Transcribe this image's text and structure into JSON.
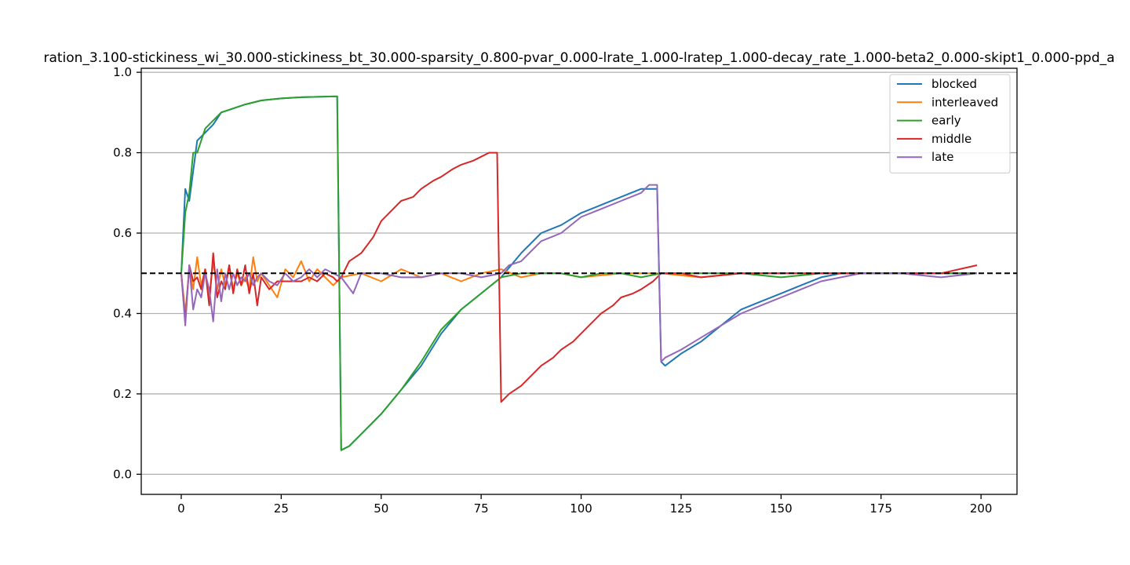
{
  "chart_data": {
    "type": "line",
    "title": "ration_3.100-stickiness_wi_30.000-stickiness_bt_30.000-sparsity_0.800-pvar_0.000-lrate_1.000-lratep_1.000-decay_rate_1.000-beta2_0.000-skipt1_0.000-ppd_a",
    "xlabel": "",
    "ylabel": "",
    "xlim": [
      -10,
      209
    ],
    "ylim": [
      -0.05,
      1.01
    ],
    "xticks": [
      "0",
      "25",
      "50",
      "75",
      "100",
      "125",
      "150",
      "175",
      "200"
    ],
    "yticks": [
      "0.0",
      "0.2",
      "0.4",
      "0.6",
      "0.8",
      "1.0"
    ],
    "ygrid": true,
    "legend_position": "top-right",
    "reference_line": {
      "y": 0.5,
      "style": "dashed",
      "color": "#000000"
    },
    "series": [
      {
        "name": "blocked",
        "color": "#1f77b4",
        "x": [
          0,
          1,
          2,
          4,
          6,
          8,
          10,
          13,
          16,
          20,
          25,
          30,
          38,
          39,
          40,
          42,
          45,
          50,
          55,
          60,
          65,
          70,
          75,
          80,
          85,
          90,
          95,
          100,
          105,
          110,
          115,
          119,
          120,
          121,
          125,
          130,
          135,
          140,
          145,
          150,
          155,
          160,
          165,
          170,
          180,
          190,
          199
        ],
        "y": [
          0.5,
          0.71,
          0.68,
          0.83,
          0.85,
          0.87,
          0.9,
          0.91,
          0.92,
          0.93,
          0.935,
          0.938,
          0.94,
          0.94,
          0.06,
          0.07,
          0.1,
          0.15,
          0.21,
          0.27,
          0.35,
          0.41,
          0.45,
          0.49,
          0.55,
          0.6,
          0.62,
          0.65,
          0.67,
          0.69,
          0.71,
          0.71,
          0.28,
          0.27,
          0.3,
          0.33,
          0.37,
          0.41,
          0.43,
          0.45,
          0.47,
          0.49,
          0.5,
          0.5,
          0.5,
          0.5,
          0.5
        ]
      },
      {
        "name": "interleaved",
        "color": "#ff7f0e",
        "x": [
          0,
          1,
          2,
          3,
          4,
          5,
          6,
          7,
          8,
          9,
          10,
          11,
          12,
          13,
          14,
          15,
          16,
          17,
          18,
          19,
          20,
          22,
          24,
          26,
          28,
          30,
          32,
          34,
          36,
          38,
          40,
          45,
          50,
          55,
          60,
          65,
          70,
          75,
          80,
          85,
          90,
          95,
          100,
          110,
          120,
          130,
          140,
          150,
          160,
          170,
          180,
          190,
          199
        ],
        "y": [
          0.5,
          0.4,
          0.51,
          0.46,
          0.54,
          0.47,
          0.51,
          0.44,
          0.53,
          0.46,
          0.51,
          0.47,
          0.52,
          0.46,
          0.5,
          0.47,
          0.49,
          0.46,
          0.54,
          0.48,
          0.5,
          0.47,
          0.44,
          0.51,
          0.49,
          0.53,
          0.48,
          0.51,
          0.49,
          0.47,
          0.49,
          0.5,
          0.48,
          0.51,
          0.49,
          0.5,
          0.48,
          0.5,
          0.51,
          0.49,
          0.5,
          0.5,
          0.49,
          0.5,
          0.5,
          0.49,
          0.5,
          0.5,
          0.5,
          0.5,
          0.5,
          0.5,
          0.5
        ]
      },
      {
        "name": "early",
        "color": "#2ca02c",
        "x": [
          0,
          1,
          2,
          3,
          4,
          5,
          6,
          8,
          10,
          13,
          16,
          20,
          25,
          30,
          38,
          39,
          40,
          42,
          45,
          50,
          55,
          60,
          65,
          70,
          75,
          80,
          85,
          90,
          95,
          100,
          105,
          110,
          115,
          120,
          125,
          130,
          135,
          140,
          150,
          160,
          170,
          180,
          190,
          199
        ],
        "y": [
          0.5,
          0.65,
          0.7,
          0.8,
          0.8,
          0.83,
          0.86,
          0.88,
          0.9,
          0.91,
          0.92,
          0.93,
          0.935,
          0.938,
          0.94,
          0.94,
          0.06,
          0.07,
          0.1,
          0.15,
          0.21,
          0.28,
          0.36,
          0.41,
          0.45,
          0.49,
          0.5,
          0.5,
          0.5,
          0.49,
          0.5,
          0.5,
          0.49,
          0.5,
          0.5,
          0.5,
          0.5,
          0.5,
          0.49,
          0.5,
          0.5,
          0.5,
          0.5,
          0.5
        ]
      },
      {
        "name": "middle",
        "color": "#d62728",
        "x": [
          0,
          1,
          2,
          3,
          4,
          5,
          6,
          7,
          8,
          9,
          10,
          11,
          12,
          13,
          14,
          15,
          16,
          17,
          18,
          19,
          20,
          22,
          24,
          26,
          28,
          30,
          32,
          34,
          36,
          38,
          39,
          40,
          42,
          45,
          48,
          50,
          53,
          55,
          58,
          60,
          63,
          65,
          68,
          70,
          73,
          75,
          77,
          79,
          80,
          82,
          85,
          88,
          90,
          93,
          95,
          98,
          100,
          103,
          105,
          108,
          110,
          113,
          115,
          118,
          119,
          120,
          125,
          130,
          140,
          150,
          160,
          170,
          180,
          190,
          199
        ],
        "y": [
          0.5,
          0.38,
          0.52,
          0.48,
          0.49,
          0.46,
          0.51,
          0.42,
          0.55,
          0.44,
          0.48,
          0.46,
          0.52,
          0.45,
          0.51,
          0.47,
          0.52,
          0.45,
          0.5,
          0.42,
          0.49,
          0.46,
          0.48,
          0.48,
          0.48,
          0.48,
          0.49,
          0.48,
          0.5,
          0.49,
          0.48,
          0.49,
          0.53,
          0.55,
          0.59,
          0.63,
          0.66,
          0.68,
          0.69,
          0.71,
          0.73,
          0.74,
          0.76,
          0.77,
          0.78,
          0.79,
          0.8,
          0.8,
          0.18,
          0.2,
          0.22,
          0.25,
          0.27,
          0.29,
          0.31,
          0.33,
          0.35,
          0.38,
          0.4,
          0.42,
          0.44,
          0.45,
          0.46,
          0.48,
          0.49,
          0.5,
          0.5,
          0.49,
          0.5,
          0.5,
          0.5,
          0.5,
          0.5,
          0.5,
          0.52
        ]
      },
      {
        "name": "late",
        "color": "#9467bd",
        "x": [
          0,
          1,
          2,
          3,
          4,
          5,
          6,
          7,
          8,
          9,
          10,
          11,
          12,
          13,
          14,
          15,
          16,
          17,
          18,
          19,
          20,
          22,
          24,
          26,
          28,
          30,
          32,
          34,
          36,
          38,
          40,
          43,
          45,
          50,
          55,
          60,
          65,
          70,
          75,
          80,
          82,
          85,
          88,
          90,
          95,
          100,
          105,
          110,
          115,
          117,
          119,
          120,
          121,
          125,
          130,
          135,
          140,
          145,
          150,
          155,
          160,
          165,
          170,
          180,
          190,
          199
        ],
        "y": [
          0.5,
          0.37,
          0.52,
          0.41,
          0.46,
          0.44,
          0.5,
          0.46,
          0.38,
          0.51,
          0.43,
          0.5,
          0.46,
          0.5,
          0.47,
          0.49,
          0.48,
          0.5,
          0.47,
          0.49,
          0.5,
          0.48,
          0.47,
          0.5,
          0.48,
          0.49,
          0.51,
          0.49,
          0.51,
          0.5,
          0.49,
          0.45,
          0.5,
          0.5,
          0.49,
          0.49,
          0.5,
          0.5,
          0.49,
          0.5,
          0.52,
          0.53,
          0.56,
          0.58,
          0.6,
          0.64,
          0.66,
          0.68,
          0.7,
          0.72,
          0.72,
          0.28,
          0.29,
          0.31,
          0.34,
          0.37,
          0.4,
          0.42,
          0.44,
          0.46,
          0.48,
          0.49,
          0.5,
          0.5,
          0.49,
          0.5
        ]
      }
    ]
  }
}
